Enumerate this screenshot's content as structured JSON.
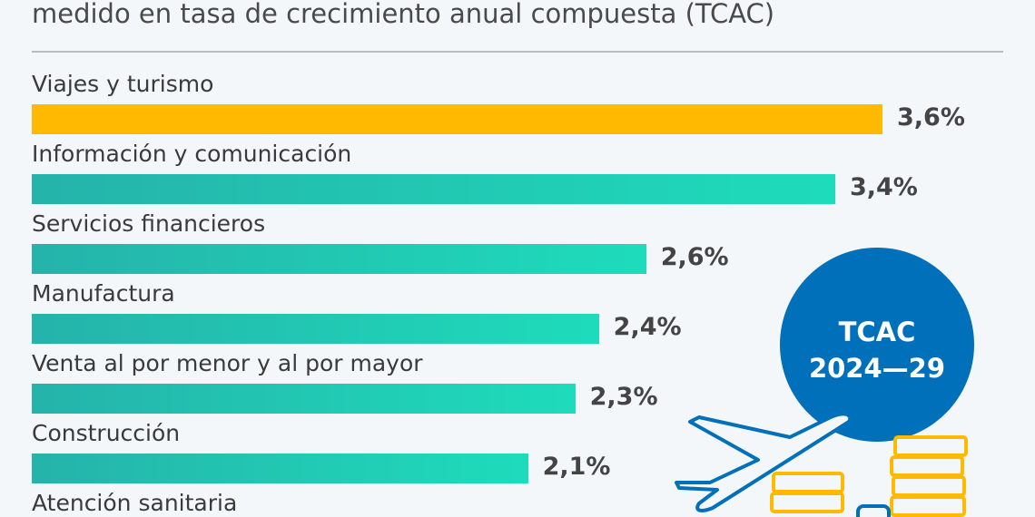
{
  "subtitle": "medido en tasa de crecimiento anual compuesta (TCAC)",
  "badge": {
    "line1": "TCAC",
    "line2": "2024—29"
  },
  "colors": {
    "highlight": "#ffb900",
    "bar_start": "#25b3aa",
    "bar_end": "#1edcbb",
    "badge": "#0070ba",
    "coins": "#ffb900"
  },
  "chart_data": {
    "type": "bar",
    "orientation": "horizontal",
    "title": "",
    "unit": "%",
    "categories": [
      "Viajes y turismo",
      "Información y comunicación",
      "Servicios financieros",
      "Manufactura",
      "Venta al por menor y al por mayor",
      "Construcción",
      "Atención sanitaria"
    ],
    "values": [
      3.6,
      3.4,
      2.6,
      2.4,
      2.3,
      2.1,
      null
    ],
    "labels": [
      "3,6%",
      "3,4%",
      "2,6%",
      "2,4%",
      "2,3%",
      "2,1%",
      ""
    ],
    "highlight_index": 0,
    "xlim": [
      0,
      3.6
    ],
    "grid": false
  },
  "icons": [
    "airplane-icon",
    "coin-stack-icon",
    "smartphone-icon"
  ]
}
